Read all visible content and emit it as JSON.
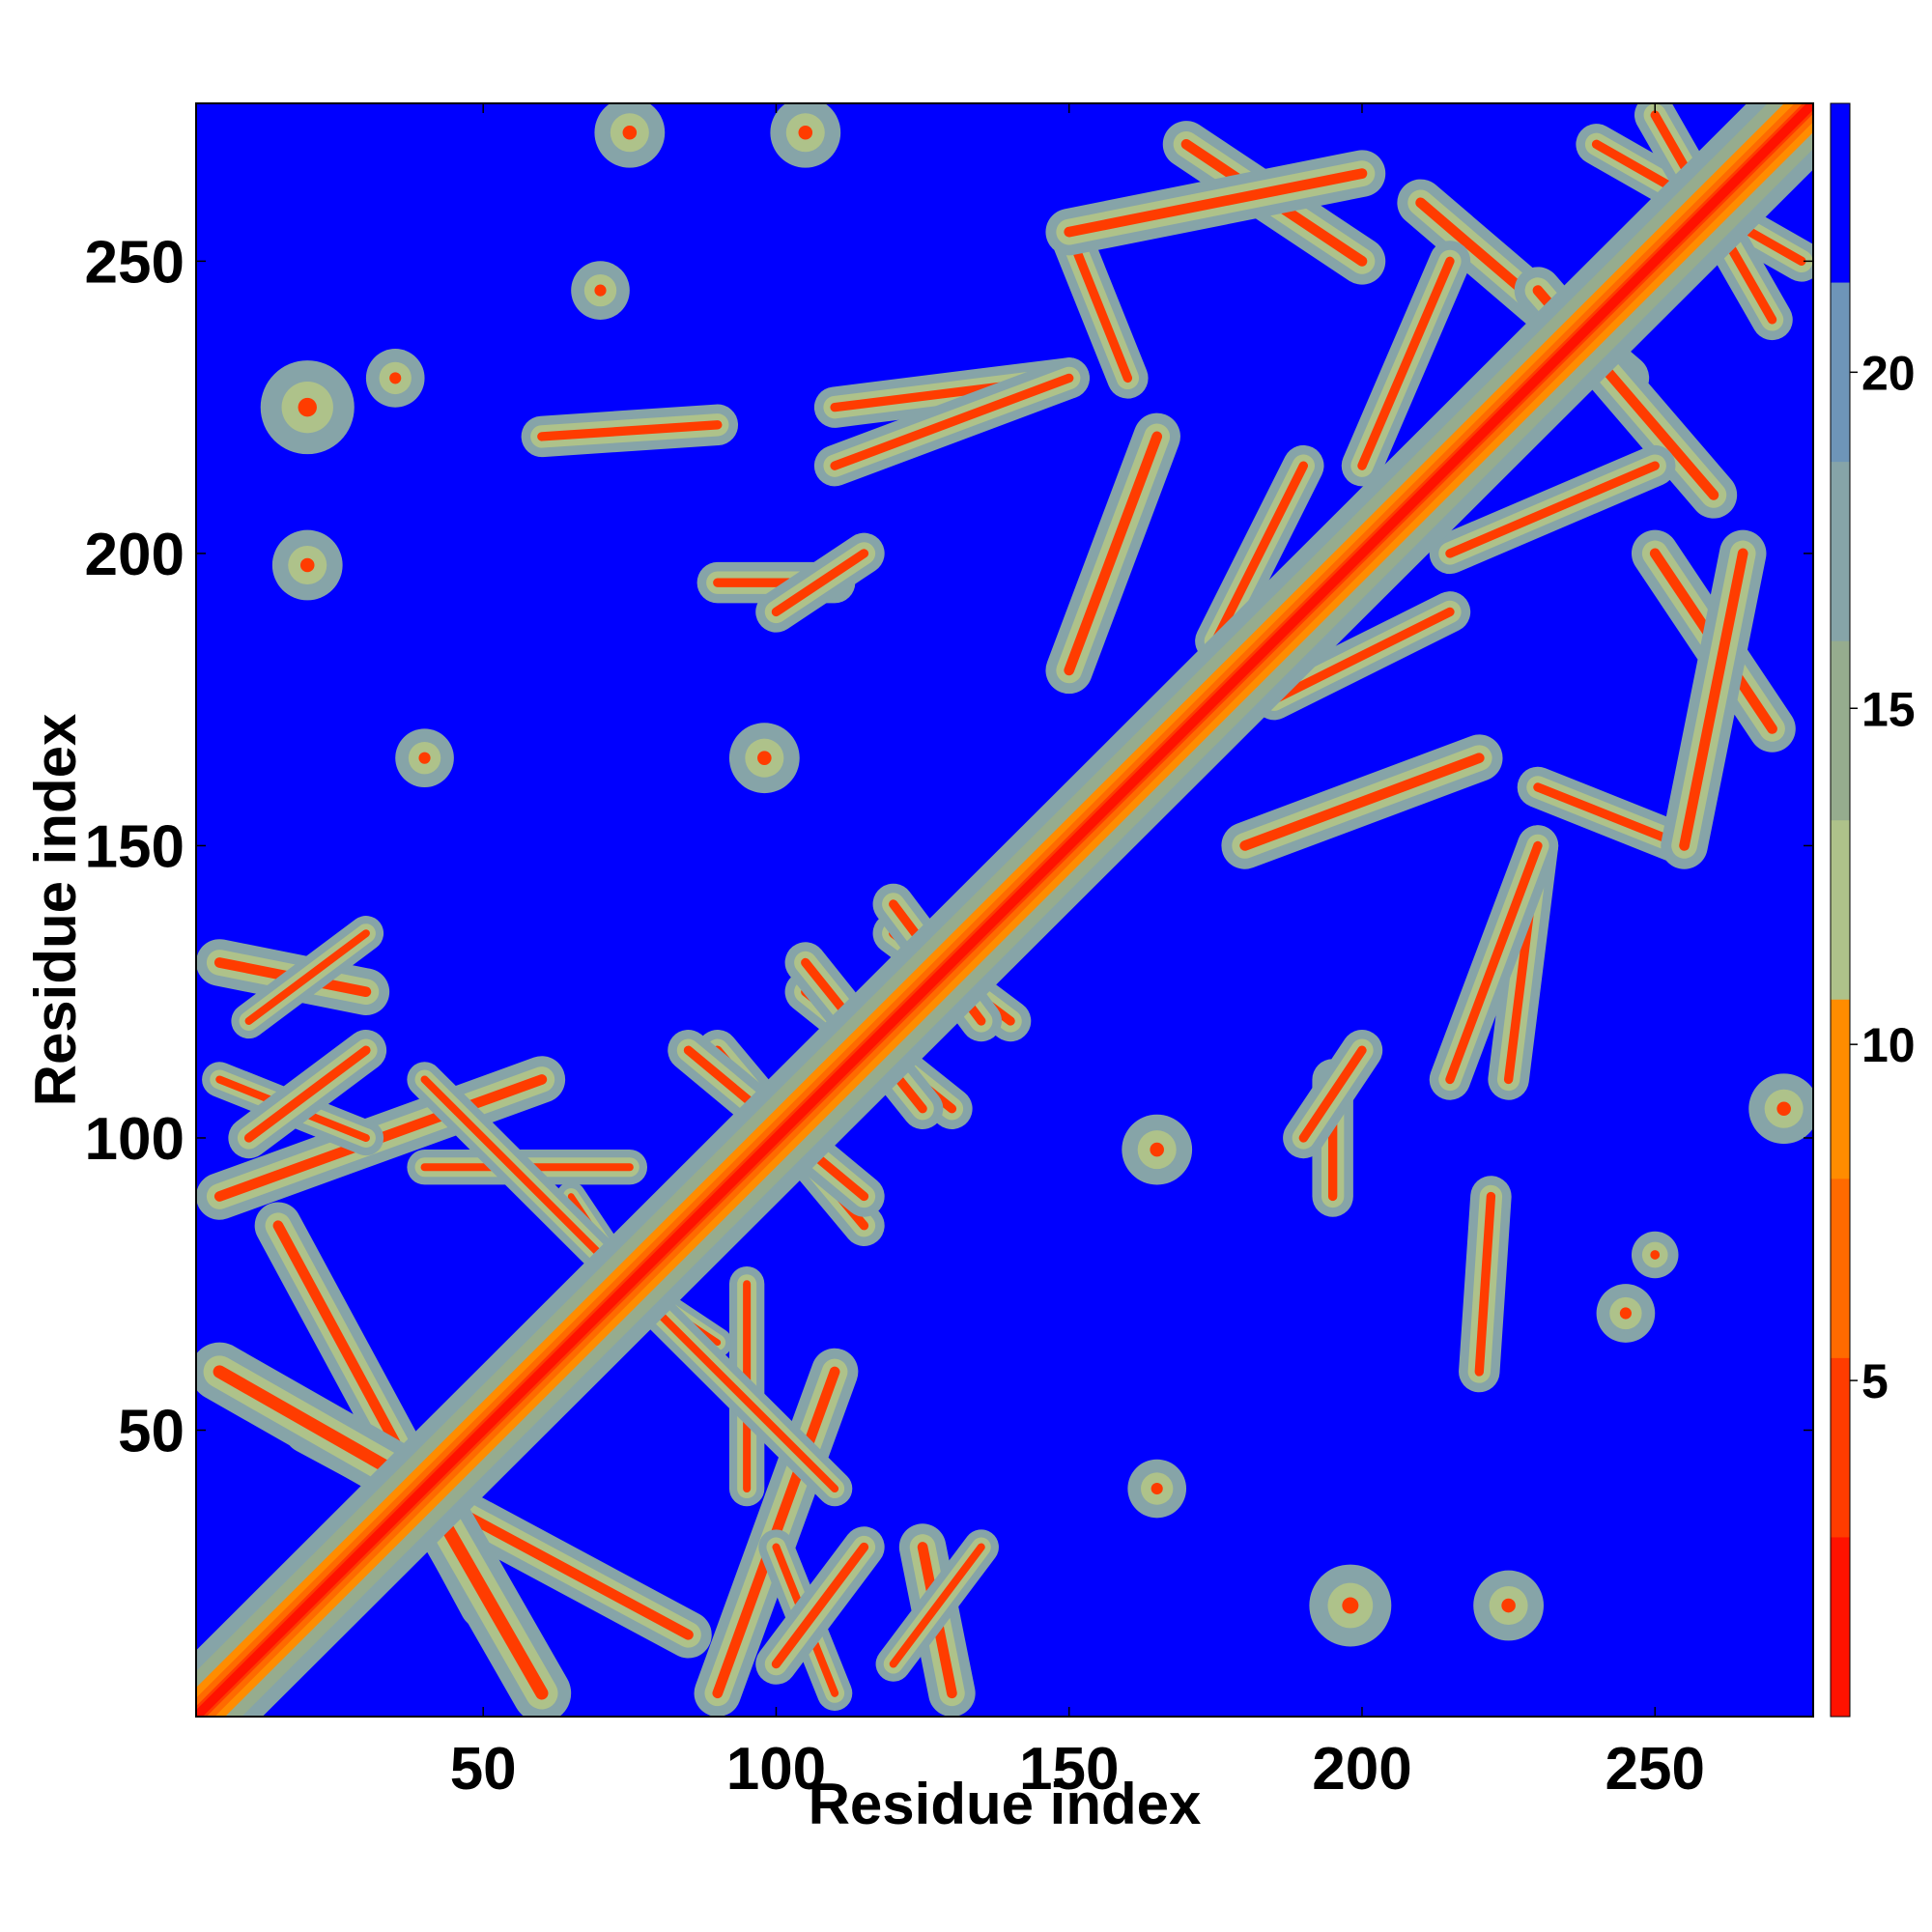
{
  "chart_data": {
    "type": "heatmap",
    "title": "",
    "xlabel": "Residue index",
    "ylabel": "Residue index",
    "xlim": [
      1,
      277
    ],
    "ylim": [
      1,
      277
    ],
    "xticks": [
      50,
      100,
      150,
      200,
      250
    ],
    "yticks": [
      50,
      100,
      150,
      200,
      250
    ],
    "colorbar": {
      "ticks": [
        5,
        10,
        15,
        20
      ],
      "range": [
        0,
        24
      ],
      "colors": [
        "#ff1200",
        "#ff3c00",
        "#ff6a00",
        "#ff8c00",
        "#aec28a",
        "#96ac8e",
        "#86a4a8",
        "#6e95b8",
        "#0000ff"
      ]
    },
    "background_color": "#0000ff",
    "matrix_description_values": {
      "diagonal_value": 1,
      "near_diagonal_values": [
        3,
        6,
        10,
        14,
        18
      ],
      "no_contact_value": 24
    },
    "contact_segments": [
      {
        "x1": 20,
        "y1": 50,
        "x2": 85,
        "y2": 15,
        "w": 8
      },
      {
        "x1": 5,
        "y1": 60,
        "x2": 40,
        "y2": 40,
        "w": 10
      },
      {
        "x1": 5,
        "y1": 90,
        "x2": 60,
        "y2": 110,
        "w": 8
      },
      {
        "x1": 5,
        "y1": 130,
        "x2": 30,
        "y2": 125,
        "w": 8
      },
      {
        "x1": 5,
        "y1": 110,
        "x2": 30,
        "y2": 100,
        "w": 6
      },
      {
        "x1": 40,
        "y1": 95,
        "x2": 75,
        "y2": 95,
        "w": 6
      },
      {
        "x1": 90,
        "y1": 115,
        "x2": 115,
        "y2": 85,
        "w": 7
      },
      {
        "x1": 105,
        "y1": 125,
        "x2": 130,
        "y2": 105,
        "w": 7
      },
      {
        "x1": 120,
        "y1": 135,
        "x2": 140,
        "y2": 120,
        "w": 7
      },
      {
        "x1": 65,
        "y1": 90,
        "x2": 75,
        "y2": 75,
        "w": 5
      },
      {
        "x1": 80,
        "y1": 70,
        "x2": 110,
        "y2": 40,
        "w": 6
      },
      {
        "x1": 100,
        "y1": 10,
        "x2": 115,
        "y2": 30,
        "w": 7
      },
      {
        "x1": 120,
        "y1": 10,
        "x2": 135,
        "y2": 30,
        "w": 6
      },
      {
        "x1": 180,
        "y1": 150,
        "x2": 220,
        "y2": 165,
        "w": 8
      },
      {
        "x1": 175,
        "y1": 185,
        "x2": 190,
        "y2": 215,
        "w": 7
      },
      {
        "x1": 210,
        "y1": 260,
        "x2": 245,
        "y2": 230,
        "w": 8
      },
      {
        "x1": 240,
        "y1": 270,
        "x2": 275,
        "y2": 250,
        "w": 7
      },
      {
        "x1": 250,
        "y1": 200,
        "x2": 270,
        "y2": 170,
        "w": 8
      },
      {
        "x1": 230,
        "y1": 160,
        "x2": 255,
        "y2": 150,
        "w": 7
      },
      {
        "x1": 215,
        "y1": 200,
        "x2": 250,
        "y2": 215,
        "w": 7
      },
      {
        "x1": 150,
        "y1": 255,
        "x2": 200,
        "y2": 265,
        "w": 8
      },
      {
        "x1": 90,
        "y1": 195,
        "x2": 110,
        "y2": 195,
        "w": 7
      },
      {
        "x1": 110,
        "y1": 225,
        "x2": 150,
        "y2": 230,
        "w": 7
      },
      {
        "x1": 60,
        "y1": 220,
        "x2": 90,
        "y2": 222,
        "w": 7
      },
      {
        "x1": 190,
        "y1": 100,
        "x2": 200,
        "y2": 115,
        "w": 7
      },
      {
        "x1": 215,
        "y1": 110,
        "x2": 230,
        "y2": 150,
        "w": 7
      }
    ],
    "contact_blobs": [
      {
        "x": 40,
        "y": 165,
        "r": 5
      },
      {
        "x": 165,
        "y": 40,
        "r": 5
      },
      {
        "x": 98,
        "y": 165,
        "r": 6
      },
      {
        "x": 165,
        "y": 98,
        "r": 6
      },
      {
        "x": 20,
        "y": 225,
        "r": 8
      },
      {
        "x": 225,
        "y": 20,
        "r": 6
      },
      {
        "x": 105,
        "y": 272,
        "r": 6
      },
      {
        "x": 272,
        "y": 105,
        "r": 6
      },
      {
        "x": 75,
        "y": 272,
        "r": 6
      },
      {
        "x": 250,
        "y": 80,
        "r": 4
      },
      {
        "x": 35,
        "y": 230,
        "r": 5
      },
      {
        "x": 70,
        "y": 245,
        "r": 5
      },
      {
        "x": 245,
        "y": 70,
        "r": 5
      },
      {
        "x": 20,
        "y": 198,
        "r": 6
      },
      {
        "x": 198,
        "y": 20,
        "r": 7
      }
    ]
  }
}
